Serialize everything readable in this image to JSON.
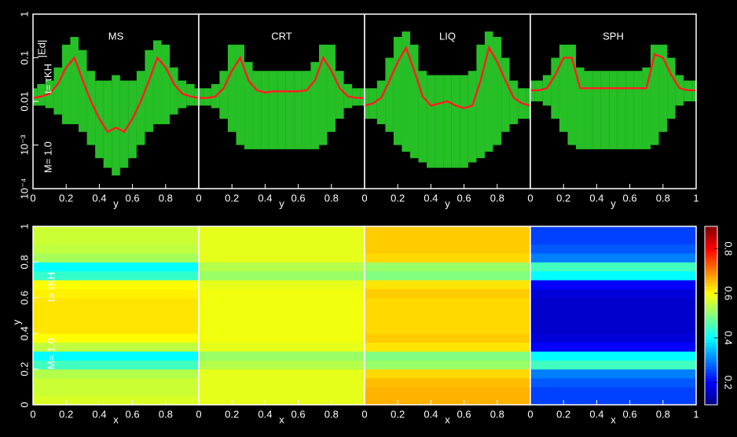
{
  "chart_data": [
    {
      "type": "line",
      "title": "MS",
      "xlabel": "y",
      "ylabel": "|Ed|",
      "annotations": [
        "t= τKH",
        "M= 1.0"
      ],
      "log_y": true,
      "xlim": [
        0,
        1
      ],
      "xticks": [
        0,
        0.2,
        0.4,
        0.6,
        0.8
      ],
      "ylim": [
        0.0001,
        1
      ],
      "yticks": [
        {
          "value": 0.0001,
          "label": "10⁻⁴"
        },
        {
          "value": 0.001,
          "label": "10⁻³"
        },
        0.01,
        0.1,
        1
      ],
      "x": [
        0,
        0.05,
        0.1,
        0.15,
        0.2,
        0.25,
        0.3,
        0.35,
        0.4,
        0.45,
        0.5,
        0.55,
        0.6,
        0.65,
        0.7,
        0.75,
        0.8,
        0.85,
        0.9,
        0.95,
        1
      ],
      "spread": {
        "color": "#33ff33",
        "upper": [
          0.02,
          0.025,
          0.03,
          0.06,
          0.2,
          0.3,
          0.15,
          0.05,
          0.03,
          0.03,
          0.04,
          0.03,
          0.03,
          0.05,
          0.15,
          0.25,
          0.2,
          0.06,
          0.03,
          0.025,
          0.02
        ],
        "lower": [
          0.008,
          0.008,
          0.007,
          0.005,
          0.003,
          0.003,
          0.002,
          0.001,
          0.0005,
          0.0003,
          0.0002,
          0.0003,
          0.0005,
          0.001,
          0.002,
          0.003,
          0.003,
          0.005,
          0.007,
          0.008,
          0.008
        ]
      },
      "series": [
        {
          "color": "#ff2020",
          "values": [
            0.012,
            0.013,
            0.015,
            0.025,
            0.06,
            0.1,
            0.03,
            0.01,
            0.004,
            0.002,
            0.0025,
            0.002,
            0.004,
            0.01,
            0.03,
            0.1,
            0.06,
            0.025,
            0.015,
            0.013,
            0.012
          ]
        }
      ]
    },
    {
      "type": "line",
      "title": "CRT",
      "xlabel": "y",
      "log_y": true,
      "xlim": [
        0,
        1
      ],
      "xticks": [
        0,
        0.2,
        0.4,
        0.6,
        0.8
      ],
      "ylim": [
        0.0001,
        1
      ],
      "x": [
        0,
        0.05,
        0.1,
        0.15,
        0.2,
        0.25,
        0.3,
        0.35,
        0.4,
        0.45,
        0.5,
        0.55,
        0.6,
        0.65,
        0.7,
        0.75,
        0.8,
        0.85,
        0.9,
        0.95,
        1
      ],
      "spread": {
        "color": "#33ff33",
        "upper": [
          0.02,
          0.02,
          0.025,
          0.05,
          0.2,
          0.2,
          0.08,
          0.05,
          0.05,
          0.05,
          0.05,
          0.05,
          0.05,
          0.05,
          0.08,
          0.2,
          0.2,
          0.05,
          0.025,
          0.02,
          0.02
        ],
        "lower": [
          0.008,
          0.008,
          0.007,
          0.004,
          0.002,
          0.001,
          0.0008,
          0.0008,
          0.0008,
          0.0008,
          0.0008,
          0.0008,
          0.0008,
          0.0008,
          0.0008,
          0.001,
          0.002,
          0.004,
          0.007,
          0.008,
          0.008
        ]
      },
      "series": [
        {
          "color": "#ff2020",
          "values": [
            0.012,
            0.012,
            0.013,
            0.02,
            0.05,
            0.1,
            0.03,
            0.018,
            0.016,
            0.017,
            0.017,
            0.017,
            0.017,
            0.018,
            0.03,
            0.1,
            0.05,
            0.02,
            0.013,
            0.012,
            0.012
          ]
        }
      ]
    },
    {
      "type": "line",
      "title": "LIQ",
      "xlabel": "y",
      "log_y": true,
      "xlim": [
        0,
        1
      ],
      "xticks": [
        0,
        0.2,
        0.4,
        0.6,
        0.8
      ],
      "ylim": [
        0.0001,
        1
      ],
      "x": [
        0,
        0.05,
        0.1,
        0.15,
        0.2,
        0.25,
        0.3,
        0.35,
        0.4,
        0.45,
        0.5,
        0.55,
        0.6,
        0.65,
        0.7,
        0.75,
        0.8,
        0.85,
        0.9,
        0.95,
        1
      ],
      "spread": {
        "color": "#33ff33",
        "upper": [
          0.02,
          0.02,
          0.03,
          0.1,
          0.3,
          0.4,
          0.2,
          0.05,
          0.04,
          0.04,
          0.04,
          0.04,
          0.04,
          0.05,
          0.2,
          0.4,
          0.3,
          0.1,
          0.03,
          0.02,
          0.02
        ],
        "lower": [
          0.004,
          0.004,
          0.003,
          0.002,
          0.001,
          0.0007,
          0.0005,
          0.0004,
          0.0003,
          0.0003,
          0.0003,
          0.0003,
          0.0003,
          0.0004,
          0.0005,
          0.0007,
          0.001,
          0.002,
          0.003,
          0.004,
          0.004
        ]
      },
      "series": [
        {
          "color": "#ff2020",
          "values": [
            0.008,
            0.009,
            0.012,
            0.03,
            0.08,
            0.17,
            0.05,
            0.013,
            0.008,
            0.009,
            0.01,
            0.008,
            0.007,
            0.008,
            0.03,
            0.17,
            0.08,
            0.03,
            0.012,
            0.009,
            0.008
          ]
        }
      ]
    },
    {
      "type": "line",
      "title": "SPH",
      "xlabel": "y",
      "log_y": true,
      "xlim": [
        0,
        1
      ],
      "xticks": [
        0,
        0.2,
        0.4,
        0.6,
        0.8,
        1
      ],
      "ylim": [
        0.0001,
        1
      ],
      "x": [
        0,
        0.05,
        0.1,
        0.15,
        0.2,
        0.25,
        0.3,
        0.35,
        0.4,
        0.45,
        0.5,
        0.55,
        0.6,
        0.65,
        0.7,
        0.75,
        0.8,
        0.85,
        0.9,
        0.95,
        1
      ],
      "spread": {
        "color": "#33ff33",
        "upper": [
          0.03,
          0.03,
          0.04,
          0.1,
          0.2,
          0.2,
          0.06,
          0.05,
          0.05,
          0.05,
          0.05,
          0.05,
          0.05,
          0.05,
          0.06,
          0.2,
          0.2,
          0.1,
          0.04,
          0.03,
          0.03
        ],
        "lower": [
          0.01,
          0.01,
          0.008,
          0.004,
          0.002,
          0.001,
          0.0008,
          0.0008,
          0.0008,
          0.0008,
          0.0008,
          0.0008,
          0.0008,
          0.0008,
          0.0008,
          0.001,
          0.002,
          0.004,
          0.008,
          0.01,
          0.01
        ]
      },
      "series": [
        {
          "color": "#ff2020",
          "values": [
            0.018,
            0.018,
            0.02,
            0.04,
            0.1,
            0.1,
            0.02,
            0.02,
            0.02,
            0.02,
            0.02,
            0.02,
            0.02,
            0.02,
            0.02,
            0.12,
            0.1,
            0.04,
            0.02,
            0.018,
            0.018
          ]
        }
      ]
    },
    {
      "type": "heatmap",
      "xlabel": "x",
      "ylabel": "y",
      "annotations": [
        "t= τKH",
        "M= 1.0"
      ],
      "xlim": [
        0,
        1
      ],
      "xticks": [
        0,
        0.2,
        0.4,
        0.6,
        0.8
      ],
      "ylim": [
        0,
        1
      ],
      "yticks": [
        0,
        0.2,
        0.4,
        0.6,
        0.8,
        1
      ],
      "y": [
        0.025,
        0.075,
        0.125,
        0.175,
        0.225,
        0.275,
        0.325,
        0.375,
        0.425,
        0.475,
        0.525,
        0.575,
        0.625,
        0.675,
        0.725,
        0.775,
        0.825,
        0.875,
        0.925,
        0.975
      ],
      "values": [
        0.57,
        0.56,
        0.56,
        0.54,
        0.45,
        0.4,
        0.55,
        0.6,
        0.62,
        0.62,
        0.62,
        0.62,
        0.61,
        0.6,
        0.44,
        0.4,
        0.53,
        0.55,
        0.56,
        0.56
      ]
    },
    {
      "type": "heatmap",
      "xlabel": "x",
      "xlim": [
        0,
        1
      ],
      "xticks": [
        0,
        0.2,
        0.4,
        0.6,
        0.8
      ],
      "ylim": [
        0,
        1
      ],
      "y": [
        0.025,
        0.075,
        0.125,
        0.175,
        0.225,
        0.275,
        0.325,
        0.375,
        0.425,
        0.475,
        0.525,
        0.575,
        0.625,
        0.675,
        0.725,
        0.775,
        0.825,
        0.875,
        0.925,
        0.975
      ],
      "values": [
        0.58,
        0.58,
        0.58,
        0.58,
        0.54,
        0.52,
        0.58,
        0.59,
        0.59,
        0.59,
        0.59,
        0.59,
        0.59,
        0.58,
        0.52,
        0.54,
        0.58,
        0.58,
        0.58,
        0.58
      ]
    },
    {
      "type": "heatmap",
      "xlabel": "x",
      "xlim": [
        0,
        1
      ],
      "xticks": [
        0,
        0.2,
        0.4,
        0.6,
        0.8
      ],
      "ylim": [
        0,
        1
      ],
      "y": [
        0.025,
        0.075,
        0.125,
        0.175,
        0.225,
        0.275,
        0.325,
        0.375,
        0.425,
        0.475,
        0.525,
        0.575,
        0.625,
        0.675,
        0.725,
        0.775,
        0.825,
        0.875,
        0.925,
        0.975
      ],
      "values": [
        0.66,
        0.66,
        0.65,
        0.63,
        0.52,
        0.5,
        0.62,
        0.64,
        0.63,
        0.63,
        0.63,
        0.63,
        0.64,
        0.62,
        0.5,
        0.52,
        0.63,
        0.64,
        0.64,
        0.64
      ]
    },
    {
      "type": "heatmap",
      "xlabel": "x",
      "xlim": [
        0,
        1
      ],
      "xticks": [
        0,
        0.2,
        0.4,
        0.6,
        0.8,
        1
      ],
      "ylim": [
        0,
        1
      ],
      "y": [
        0.025,
        0.075,
        0.125,
        0.175,
        0.225,
        0.275,
        0.325,
        0.375,
        0.425,
        0.475,
        0.525,
        0.575,
        0.625,
        0.675,
        0.725,
        0.775,
        0.825,
        0.875,
        0.925,
        0.975
      ],
      "values": [
        0.25,
        0.25,
        0.27,
        0.3,
        0.45,
        0.4,
        0.2,
        0.17,
        0.16,
        0.16,
        0.16,
        0.16,
        0.17,
        0.2,
        0.4,
        0.45,
        0.3,
        0.27,
        0.25,
        0.25
      ]
    },
    {
      "type": "colorbar",
      "colormap": "jet",
      "clim": [
        0.1,
        0.9
      ],
      "cticks": [
        0.2,
        0.4,
        0.6,
        0.8
      ]
    }
  ]
}
